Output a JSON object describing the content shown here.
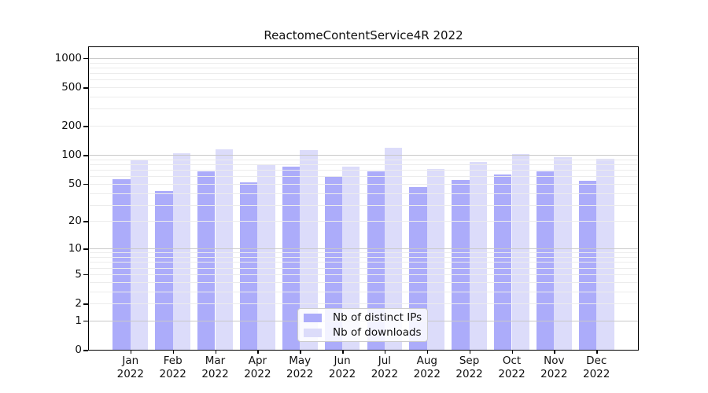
{
  "title": "ReactomeContentService4R 2022",
  "chart_data": {
    "type": "bar",
    "title": "ReactomeContentService4R 2022",
    "categories": [
      "Jan 2022",
      "Feb 2022",
      "Mar 2022",
      "Apr 2022",
      "May 2022",
      "Jun 2022",
      "Jul 2022",
      "Aug 2022",
      "Sep 2022",
      "Oct 2022",
      "Nov 2022",
      "Dec 2022"
    ],
    "series": [
      {
        "name": "Nb of distinct IPs",
        "color": "#acacfa",
        "values": [
          56,
          42,
          67,
          52,
          75,
          59,
          67,
          46,
          55,
          63,
          68,
          54
        ]
      },
      {
        "name": "Nb of downloads",
        "color": "#dcdcfa",
        "values": [
          88,
          105,
          114,
          80,
          112,
          76,
          118,
          72,
          85,
          102,
          95,
          92
        ]
      }
    ],
    "xlabel": "",
    "ylabel": "",
    "yscale": "log1p",
    "y_ticks": [
      0,
      1,
      2,
      5,
      10,
      20,
      50,
      100,
      200,
      500,
      1000
    ],
    "ylim": [
      0,
      1300
    ],
    "grid": "horizontal major and minor gridlines",
    "legend_position": "lower center inside plot",
    "colors": {
      "major_grid": "#c9c9c9",
      "minor_grid": "#ececec",
      "axis": "#000000"
    }
  }
}
